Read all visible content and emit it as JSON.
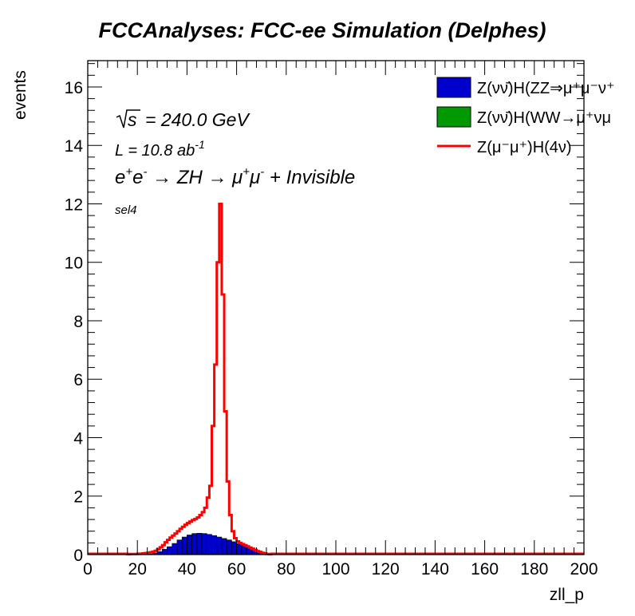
{
  "chart_data": {
    "type": "histogram",
    "title": "FCCAnalyses: FCC-ee Simulation (Delphes)",
    "xlabel": "zll_p",
    "ylabel": "events",
    "xlim": [
      0,
      200
    ],
    "ylim": [
      0,
      16.9
    ],
    "x_ticks": [
      "0",
      "20",
      "40",
      "60",
      "80",
      "100",
      "120",
      "140",
      "160",
      "180",
      "200"
    ],
    "y_ticks": [
      "0",
      "2",
      "4",
      "6",
      "8",
      "10",
      "12",
      "14",
      "16"
    ],
    "bin_width": 1,
    "annotations": {
      "sqrt_s": "s",
      "energy": "= 240.0 GeV",
      "lumi": "L = 10.8 ab",
      "lumi_exp": "-1",
      "process": "e+e- → ZH → μ+μ- + Invisible",
      "selection": "sel4"
    },
    "legend": [
      {
        "label": "Z(νν̄)H(ZZ⇒μ⁺μ⁻ν⁺",
        "style": "fill",
        "color": "#0000cc"
      },
      {
        "label": "Z(νν̄)H(WW→μ⁺νμ",
        "style": "fill",
        "color": "#009900"
      },
      {
        "label": "Z(μ⁻μ⁺)H(4ν)",
        "style": "line",
        "color": "#ff0000"
      }
    ],
    "series": [
      {
        "name": "Z(νν̄)H(ZZ⇒μ⁺μ⁻ν⁺",
        "style": "filled-histogram",
        "color": "#0000cc",
        "bins": [
          [
            24,
            0.02
          ],
          [
            26,
            0.05
          ],
          [
            28,
            0.1
          ],
          [
            30,
            0.18
          ],
          [
            32,
            0.27
          ],
          [
            34,
            0.38
          ],
          [
            36,
            0.5
          ],
          [
            38,
            0.6
          ],
          [
            40,
            0.67
          ],
          [
            42,
            0.72
          ],
          [
            44,
            0.73
          ],
          [
            46,
            0.72
          ],
          [
            48,
            0.69
          ],
          [
            50,
            0.65
          ],
          [
            52,
            0.6
          ],
          [
            54,
            0.55
          ],
          [
            56,
            0.5
          ],
          [
            58,
            0.44
          ],
          [
            60,
            0.38
          ],
          [
            62,
            0.32
          ],
          [
            64,
            0.25
          ],
          [
            66,
            0.18
          ],
          [
            68,
            0.12
          ],
          [
            70,
            0.07
          ],
          [
            72,
            0.03
          ],
          [
            74,
            0.01
          ]
        ]
      },
      {
        "name": "Z(νν̄)H(WW→μ⁺νμ",
        "style": "filled-histogram",
        "color": "#009900",
        "bins": [
          [
            40,
            0.01
          ],
          [
            44,
            0.01
          ],
          [
            48,
            0.01
          ],
          [
            52,
            0.01
          ],
          [
            56,
            0.01
          ]
        ]
      },
      {
        "name": "Z(μ⁻μ⁺)H(4ν)",
        "style": "step-line",
        "color": "#ff0000",
        "bins": [
          [
            16,
            0.01
          ],
          [
            17,
            0.02
          ],
          [
            18,
            0.02
          ],
          [
            19,
            0.02
          ],
          [
            20,
            0.03
          ],
          [
            21,
            0.03
          ],
          [
            22,
            0.04
          ],
          [
            23,
            0.05
          ],
          [
            24,
            0.06
          ],
          [
            25,
            0.08
          ],
          [
            26,
            0.1
          ],
          [
            27,
            0.13
          ],
          [
            28,
            0.18
          ],
          [
            29,
            0.25
          ],
          [
            30,
            0.32
          ],
          [
            31,
            0.42
          ],
          [
            32,
            0.5
          ],
          [
            33,
            0.58
          ],
          [
            34,
            0.65
          ],
          [
            35,
            0.72
          ],
          [
            36,
            0.8
          ],
          [
            37,
            0.88
          ],
          [
            38,
            0.95
          ],
          [
            39,
            1.02
          ],
          [
            40,
            1.08
          ],
          [
            41,
            1.13
          ],
          [
            42,
            1.18
          ],
          [
            43,
            1.22
          ],
          [
            44,
            1.27
          ],
          [
            45,
            1.35
          ],
          [
            46,
            1.45
          ],
          [
            47,
            1.6
          ],
          [
            48,
            1.95
          ],
          [
            49,
            2.35
          ],
          [
            50,
            4.4
          ],
          [
            51,
            6.5
          ],
          [
            52,
            10.0
          ],
          [
            53,
            12.0
          ],
          [
            54,
            8.9
          ],
          [
            55,
            4.9
          ],
          [
            56,
            2.5
          ],
          [
            57,
            1.35
          ],
          [
            58,
            0.8
          ],
          [
            59,
            0.56
          ],
          [
            60,
            0.45
          ],
          [
            61,
            0.4
          ],
          [
            62,
            0.36
          ],
          [
            63,
            0.32
          ],
          [
            64,
            0.28
          ],
          [
            65,
            0.24
          ],
          [
            66,
            0.2
          ],
          [
            67,
            0.16
          ],
          [
            68,
            0.12
          ],
          [
            69,
            0.09
          ],
          [
            70,
            0.06
          ],
          [
            71,
            0.04
          ],
          [
            72,
            0.02
          ],
          [
            73,
            0.01
          ]
        ]
      }
    ]
  }
}
